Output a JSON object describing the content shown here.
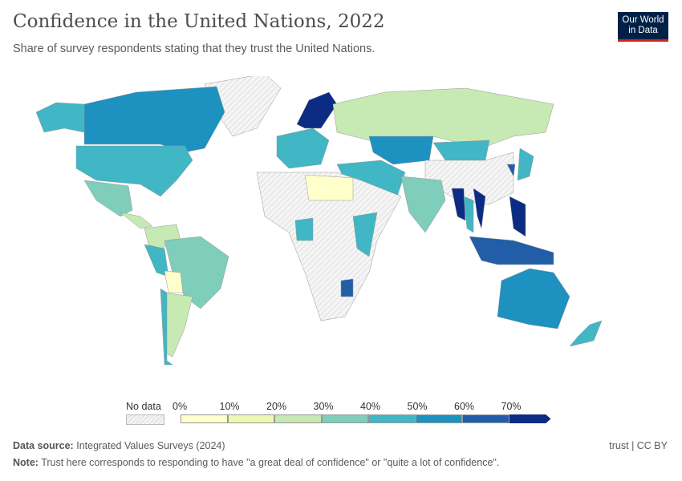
{
  "header": {
    "title": "Confidence in the United Nations, 2022",
    "subtitle": "Share of survey respondents stating that they trust the United Nations.",
    "logo": "Our World in Data"
  },
  "legend": {
    "no_data_label": "No data",
    "ticks": [
      "0%",
      "10%",
      "20%",
      "30%",
      "40%",
      "50%",
      "60%",
      "70%"
    ],
    "bins": [
      {
        "range": "0-10%",
        "color": "#ffffcc"
      },
      {
        "range": "10-20%",
        "color": "#edf8b1"
      },
      {
        "range": "20-30%",
        "color": "#c7e9b4"
      },
      {
        "range": "30-40%",
        "color": "#7fcdbb"
      },
      {
        "range": "40-50%",
        "color": "#41b6c4"
      },
      {
        "range": "50-60%",
        "color": "#1d91c0"
      },
      {
        "range": "60-70%",
        "color": "#225ea8"
      },
      {
        "range": ">70%",
        "color": "#0c2c84"
      }
    ]
  },
  "footer": {
    "source_label": "Data source:",
    "source": "Integrated Values Surveys (2024)",
    "note_label": "Note:",
    "note": "Trust here corresponds to responding to have \"a great deal of confidence\" or \"quite a lot of confidence\".",
    "license": "trust | CC BY"
  }
}
